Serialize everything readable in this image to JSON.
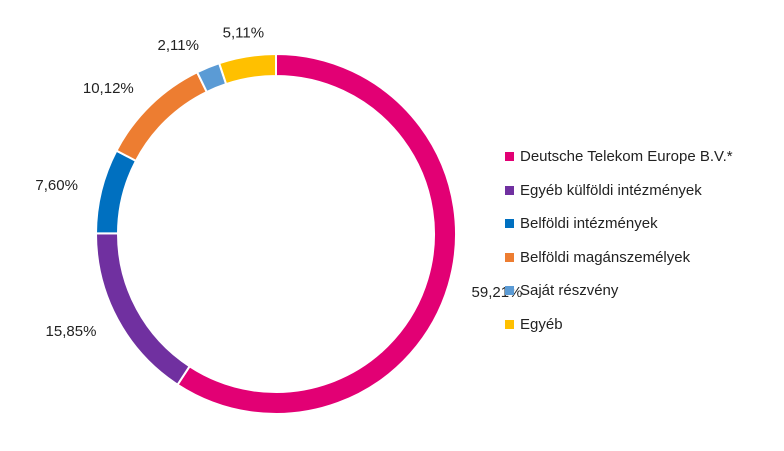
{
  "chart_data": {
    "type": "pie",
    "subtype": "donut",
    "legend_position": "right",
    "slices": [
      {
        "label": "Deutsche Telekom Europe B.V.*",
        "value": 59.21,
        "value_label": "59,21%",
        "color": "#E20074"
      },
      {
        "label": "Egyéb külföldi intézmények",
        "value": 15.85,
        "value_label": "15,85%",
        "color": "#7030A0"
      },
      {
        "label": "Belföldi intézmények",
        "value": 7.6,
        "value_label": "7,60%",
        "color": "#0070C0"
      },
      {
        "label": "Belföldi magánszemélyek",
        "value": 10.12,
        "value_label": "10,12%",
        "color": "#ED7D31"
      },
      {
        "label": "Saját részvény",
        "value": 2.11,
        "value_label": "2,11%",
        "color": "#5B9BD5"
      },
      {
        "label": "Egyéb",
        "value": 5.11,
        "value_label": "5,11%",
        "color": "#FFC000"
      }
    ]
  }
}
